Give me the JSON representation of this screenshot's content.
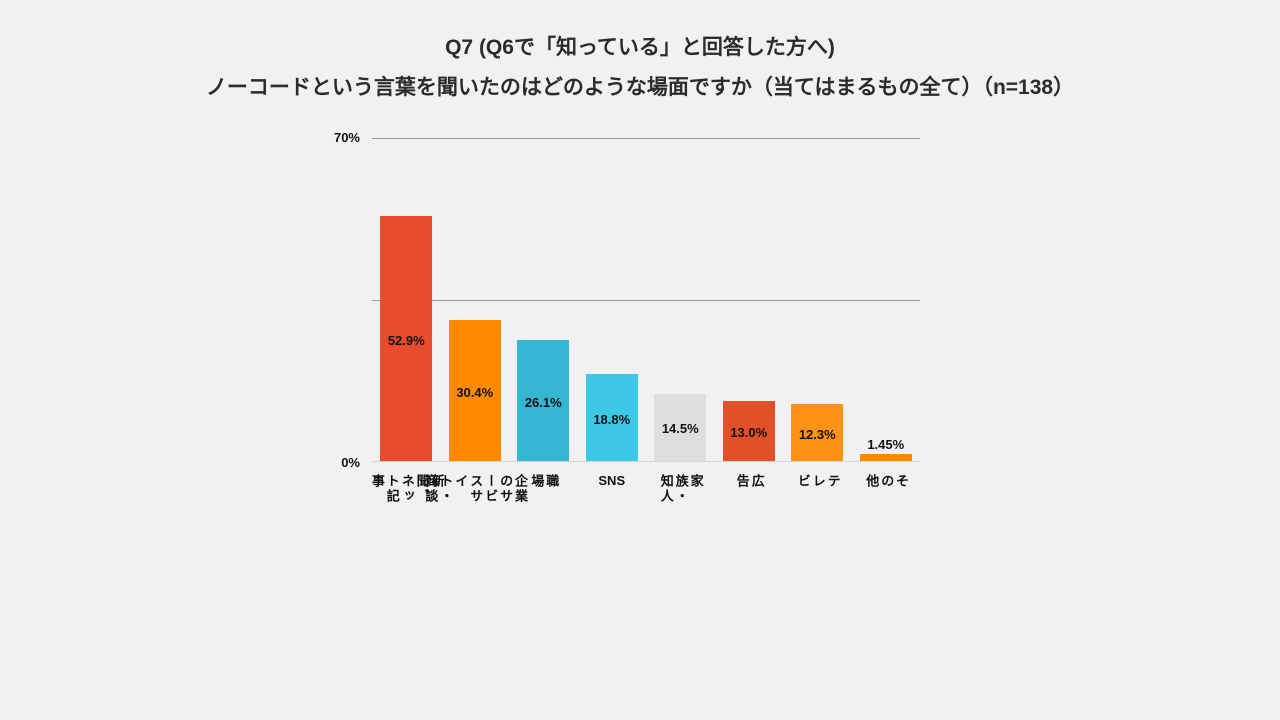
{
  "title": {
    "line1": "Q7 (Q6で「知っている」と回答した方へ)",
    "line2": "ノーコードという言葉を聞いたのはどのような場面ですか（当てはまるもの全て）（n=138）"
  },
  "chart_data": {
    "type": "bar",
    "title": "Q7 (Q6で「知っている」と回答した方へ) ノーコードという言葉を聞いたのはどのような場面ですか（当てはまるもの全て）（n=138）",
    "n": 138,
    "categories": [
      "新聞、ネット記事",
      "企業のサービスサイト・商談",
      "職場",
      "SNS",
      "家族・知人",
      "広告",
      "テレビ",
      "その他"
    ],
    "values": [
      52.9,
      30.4,
      26.1,
      18.8,
      14.5,
      13.0,
      12.3,
      1.45
    ],
    "value_labels": [
      "52.9%",
      "30.4%",
      "26.1%",
      "18.8%",
      "14.5%",
      "13.0%",
      "12.3%",
      "1.45%"
    ],
    "colors": [
      "#e84c2c",
      "#ff8a00",
      "#35b5d2",
      "#3ec8e7",
      "#dedede",
      "#e2502a",
      "#ff9214",
      "#ff8a00"
    ],
    "vertical_labels": [
      true,
      true,
      true,
      false,
      true,
      true,
      true,
      true
    ],
    "ylim": [
      0,
      70
    ],
    "yticks": [
      "0%",
      "70%"
    ],
    "gridlines_percent": [
      35,
      70
    ],
    "legend": "none",
    "background": "#f1f1f1"
  }
}
